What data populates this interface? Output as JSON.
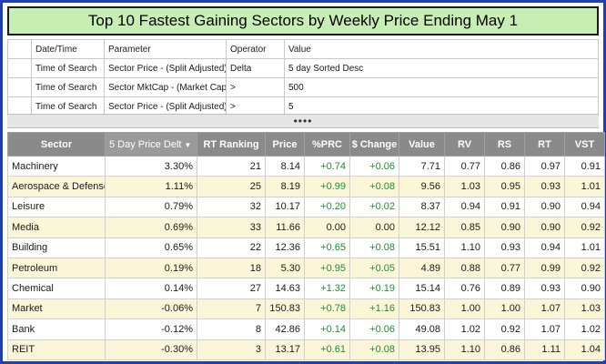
{
  "title": "Top 10 Fastest Gaining Sectors by Weekly Price Ending May 1",
  "criteria": {
    "headers": [
      "Date/Time",
      "Parameter",
      "Operator",
      "Value"
    ],
    "rows": [
      {
        "date": "Time of Search",
        "parameter": "Sector Price - (Split Adjusted)",
        "operator": "Delta",
        "value": "5 day Sorted Desc"
      },
      {
        "date": "Time of Search",
        "parameter": "Sector MktCap - (Market Capitali...",
        "operator": ">",
        "value": "500"
      },
      {
        "date": "Time of Search",
        "parameter": "Sector Price - (Split Adjusted)",
        "operator": ">",
        "value": "5"
      }
    ]
  },
  "splitter": "••••",
  "results": {
    "headers": [
      "Sector",
      "5 Day Price Delt",
      "RT Ranking",
      "Price",
      "%PRC",
      "$ Change",
      "Value",
      "RV",
      "RS",
      "RT",
      "VST"
    ],
    "sort_icon": "sort-desc-icon",
    "rows": [
      {
        "sector": "Machinery",
        "delta": "3.30%",
        "rank": "21",
        "price": "8.14",
        "prc": "+0.74",
        "chg": "+0.06",
        "value": "7.71",
        "rv": "0.77",
        "rs": "0.86",
        "rt": "0.97",
        "vst": "0.91"
      },
      {
        "sector": "Aerospace & Defense",
        "delta": "1.11%",
        "rank": "25",
        "price": "8.19",
        "prc": "+0.99",
        "chg": "+0.08",
        "value": "9.56",
        "rv": "1.03",
        "rs": "0.95",
        "rt": "0.93",
        "vst": "1.01"
      },
      {
        "sector": "Leisure",
        "delta": "0.79%",
        "rank": "32",
        "price": "10.17",
        "prc": "+0.20",
        "chg": "+0.02",
        "value": "8.37",
        "rv": "0.94",
        "rs": "0.91",
        "rt": "0.90",
        "vst": "0.94"
      },
      {
        "sector": "Media",
        "delta": "0.69%",
        "rank": "33",
        "price": "11.66",
        "prc": "0.00",
        "chg": "0.00",
        "value": "12.12",
        "rv": "0.85",
        "rs": "0.90",
        "rt": "0.90",
        "vst": "0.92"
      },
      {
        "sector": "Building",
        "delta": "0.65%",
        "rank": "22",
        "price": "12.36",
        "prc": "+0.65",
        "chg": "+0.08",
        "value": "15.51",
        "rv": "1.10",
        "rs": "0.93",
        "rt": "0.94",
        "vst": "1.01"
      },
      {
        "sector": "Petroleum",
        "delta": "0.19%",
        "rank": "18",
        "price": "5.30",
        "prc": "+0.95",
        "chg": "+0.05",
        "value": "4.89",
        "rv": "0.88",
        "rs": "0.77",
        "rt": "0.99",
        "vst": "0.92"
      },
      {
        "sector": "Chemical",
        "delta": "0.14%",
        "rank": "27",
        "price": "14.63",
        "prc": "+1.32",
        "chg": "+0.19",
        "value": "15.14",
        "rv": "0.76",
        "rs": "0.89",
        "rt": "0.93",
        "vst": "0.90"
      },
      {
        "sector": "Market",
        "delta": "-0.06%",
        "rank": "7",
        "price": "150.83",
        "prc": "+0.78",
        "chg": "+1.16",
        "value": "150.83",
        "rv": "1.00",
        "rs": "1.00",
        "rt": "1.07",
        "vst": "1.03"
      },
      {
        "sector": "Bank",
        "delta": "-0.12%",
        "rank": "8",
        "price": "42.86",
        "prc": "+0.14",
        "chg": "+0.06",
        "value": "49.08",
        "rv": "1.02",
        "rs": "0.92",
        "rt": "1.07",
        "vst": "1.02"
      },
      {
        "sector": "REIT",
        "delta": "-0.30%",
        "rank": "3",
        "price": "13.17",
        "prc": "+0.61",
        "chg": "+0.08",
        "value": "13.95",
        "rv": "1.10",
        "rs": "0.86",
        "rt": "1.11",
        "vst": "1.04"
      }
    ]
  },
  "colors": {
    "positive": "#1e8e2e",
    "frame": "#1f3fb5",
    "title_bg": "#c7efb3",
    "alt_row": "#fbf6d8",
    "header_bg": "#8a8a8a"
  }
}
